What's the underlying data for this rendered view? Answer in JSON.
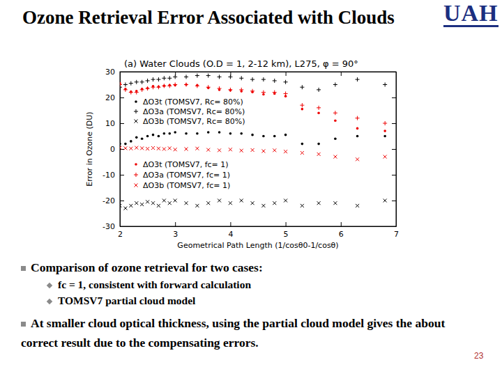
{
  "slide": {
    "title": "Ozone Retrieval Error Associated with Clouds",
    "logo": "UAH",
    "bullets": [
      {
        "text": "Comparison of ozone retrieval for two cases:",
        "sub": [
          "fc = 1, consistent with forward calculation",
          "TOMSV7 partial cloud model"
        ]
      },
      {
        "text": "At smaller cloud optical thickness, using the partial cloud model gives the about correct result due to the compensating errors."
      }
    ],
    "page_number": 23
  },
  "chart_data": {
    "type": "scatter",
    "title": "(a) Water Clouds (O.D = 1, 2-12 km), L275, φ = 90°",
    "x_label": "Geometrical Path Length (1/cosθ0-1/cosθ)",
    "y_label": "Error in Ozone (DU)",
    "x": [
      2.0,
      2.1,
      2.2,
      2.3,
      2.4,
      2.5,
      2.6,
      2.7,
      2.8,
      2.9,
      3.0,
      3.2,
      3.4,
      3.6,
      3.8,
      4.0,
      4.2,
      4.4,
      4.6,
      4.8,
      5.0,
      5.3,
      5.6,
      5.9,
      6.3,
      6.8
    ],
    "series": [
      {
        "name": "ΔO3t (TOMSV7, Rc= 80%)",
        "color": "#000000",
        "marker": "circle",
        "values": [
          2,
          2,
          3,
          4.5,
          4,
          5,
          5.5,
          5,
          6,
          6,
          6.5,
          6,
          6,
          6.5,
          6.5,
          6,
          6,
          5.5,
          5,
          5,
          5.5,
          2,
          2,
          4,
          5,
          5
        ]
      },
      {
        "name": "ΔO3a (TOMSV7, Rc= 80%)",
        "color": "#000000",
        "marker": "plus",
        "values": [
          24,
          25,
          25.5,
          26,
          26,
          26.5,
          27,
          27,
          27.5,
          27.5,
          28,
          28,
          28.5,
          28.5,
          28,
          28,
          27.5,
          27,
          27,
          26.5,
          26,
          24,
          23,
          25,
          27,
          25
        ]
      },
      {
        "name": "ΔO3b (TOMSV7, Rc= 80%)",
        "color": "#000000",
        "marker": "x",
        "values": [
          -22,
          -23,
          -22,
          -21,
          -21.5,
          -20.5,
          -21,
          -22,
          -20,
          -21,
          -20,
          -21,
          -22,
          -21,
          -20,
          -21,
          -20,
          -21,
          -22,
          -21,
          -20,
          -22,
          -21,
          -21,
          -22,
          -20
        ]
      },
      {
        "name": "ΔO3t (TOMSV7, fc= 1)",
        "color": "#ee0000",
        "marker": "circle",
        "values": [
          25.5,
          23.3,
          22.2,
          22.5,
          23.3,
          23.6,
          24.4,
          24.2,
          24.5,
          24.8,
          24.8,
          25,
          24.7,
          23.7,
          23,
          22.8,
          22.4,
          22.1,
          21.2,
          21.5,
          20.5,
          15.5,
          14,
          11,
          8,
          7
        ]
      },
      {
        "name": "ΔO3a (TOMSV7, fc= 1)",
        "color": "#ee0000",
        "marker": "plus",
        "values": [
          25,
          23,
          22,
          22,
          23,
          23.5,
          24,
          24,
          24.5,
          24.5,
          25,
          25,
          24.5,
          24,
          23.5,
          23,
          23,
          22.5,
          22,
          22,
          21.5,
          17,
          16,
          14,
          12,
          10
        ]
      },
      {
        "name": "ΔO3b (TOMSV7, fc= 1)",
        "color": "#ee0000",
        "marker": "x",
        "values": [
          0.5,
          0.3,
          0.2,
          0.5,
          0.3,
          0.1,
          0.4,
          0.2,
          0,
          0.3,
          -0.2,
          0,
          0.2,
          -0.3,
          -0.5,
          -0.2,
          -0.6,
          -0.4,
          -0.8,
          -0.5,
          -1,
          -1.5,
          -2,
          -3,
          -4,
          -3
        ]
      }
    ],
    "xlim": [
      2,
      7
    ],
    "ylim": [
      -30,
      30
    ],
    "xticks": [
      2,
      3,
      4,
      5,
      6,
      7
    ],
    "yticks": [
      -30,
      -20,
      -10,
      0,
      10,
      20,
      30
    ],
    "legend": "left",
    "grid": false
  }
}
